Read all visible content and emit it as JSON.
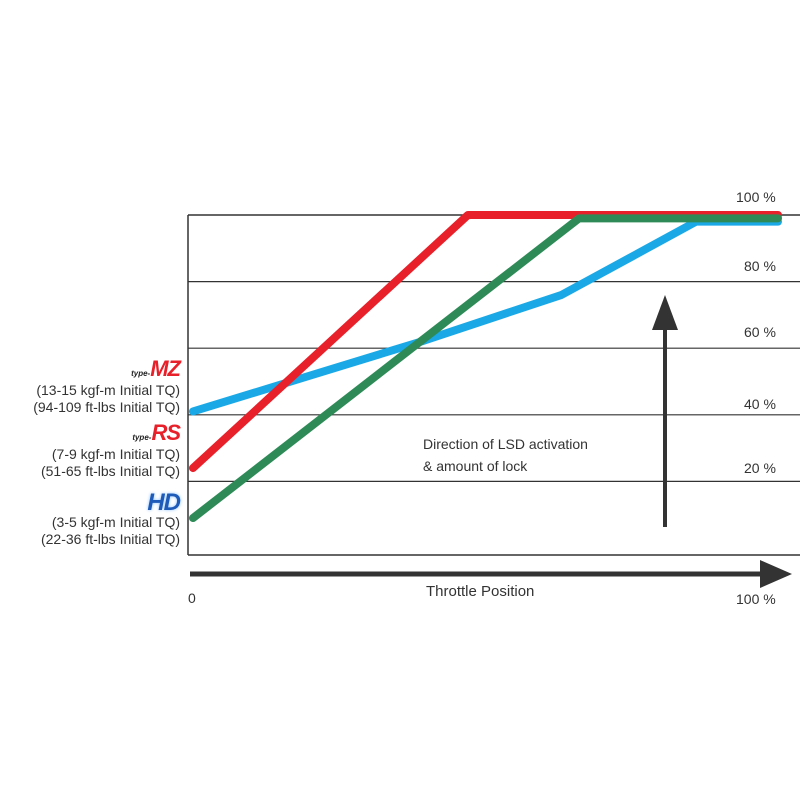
{
  "chart_data": {
    "type": "line",
    "xlabel": "Throttle Position",
    "x_tick_labels": [
      "0",
      "100 %"
    ],
    "y_tick_labels": [
      "20 %",
      "40 %",
      "60 %",
      "80 %",
      "100 %"
    ],
    "xlim": [
      0,
      100
    ],
    "ylim": [
      0,
      100
    ],
    "grid": true,
    "annotation": [
      "Direction of LSD activation",
      "& amount of lock"
    ],
    "series": [
      {
        "id": "mz",
        "color": "#1aa9e6",
        "x": [
          0,
          39,
          63,
          86,
          100
        ],
        "y": [
          41,
          62,
          76,
          98,
          98
        ]
      },
      {
        "id": "rs",
        "color": "#e8202a",
        "x": [
          0,
          47,
          100
        ],
        "y": [
          24,
          100,
          100
        ]
      },
      {
        "id": "hd",
        "color": "#2e8b57",
        "x": [
          0,
          66,
          100
        ],
        "y": [
          9,
          99,
          99
        ]
      }
    ]
  },
  "legend": {
    "mz": {
      "logo_prefix": "type-",
      "logo": "MZ",
      "line1": "(13-15 kgf-m Initial TQ)",
      "line2": "(94-109 ft-lbs Initial TQ)"
    },
    "rs": {
      "logo_prefix": "type-",
      "logo": "RS",
      "line1": "(7-9 kgf-m Initial TQ)",
      "line2": "(51-65 ft-lbs Initial TQ)"
    },
    "hd": {
      "logo": "HD",
      "line1": "(3-5 kgf-m Initial TQ)",
      "line2": "(22-36 ft-lbs Initial TQ)"
    }
  }
}
